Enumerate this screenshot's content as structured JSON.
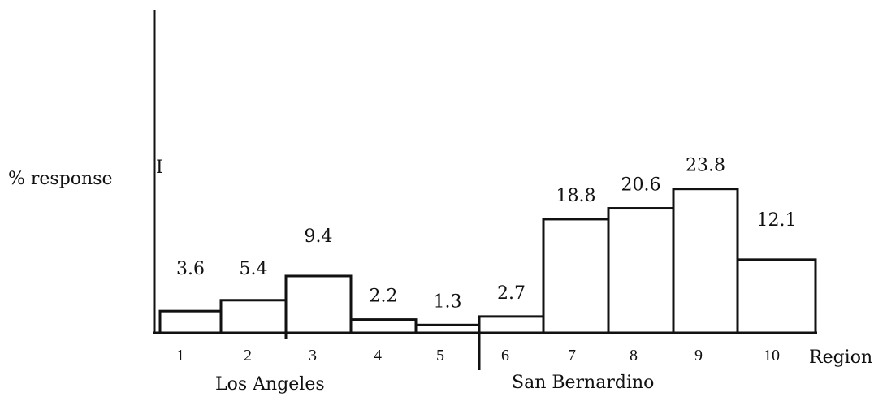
{
  "chart_data": {
    "type": "bar",
    "xlabel": "Region",
    "ylabel": "% response",
    "categories": [
      "1",
      "2",
      "3",
      "4",
      "5",
      "6",
      "7",
      "8",
      "9",
      "10"
    ],
    "values": [
      3.6,
      5.4,
      9.4,
      2.2,
      1.3,
      2.7,
      18.8,
      20.6,
      23.8,
      12.1
    ],
    "value_labels": [
      "3.6",
      "5.4",
      "9.4",
      "2.2",
      "1.3",
      "2.7",
      "18.8",
      "20.6",
      "23.8",
      "12.1"
    ],
    "groups": [
      {
        "name": "Los Angeles",
        "categories": [
          "1",
          "2",
          "3",
          "4",
          "5"
        ]
      },
      {
        "name": "San Bernardino",
        "categories": [
          "6",
          "7",
          "8",
          "9",
          "10"
        ]
      }
    ],
    "axis_stray_mark": "I",
    "ylim": [
      0,
      30
    ],
    "grid": false,
    "legend": "none",
    "bar_fill": "#ffffff",
    "stroke_color": "#111111"
  }
}
